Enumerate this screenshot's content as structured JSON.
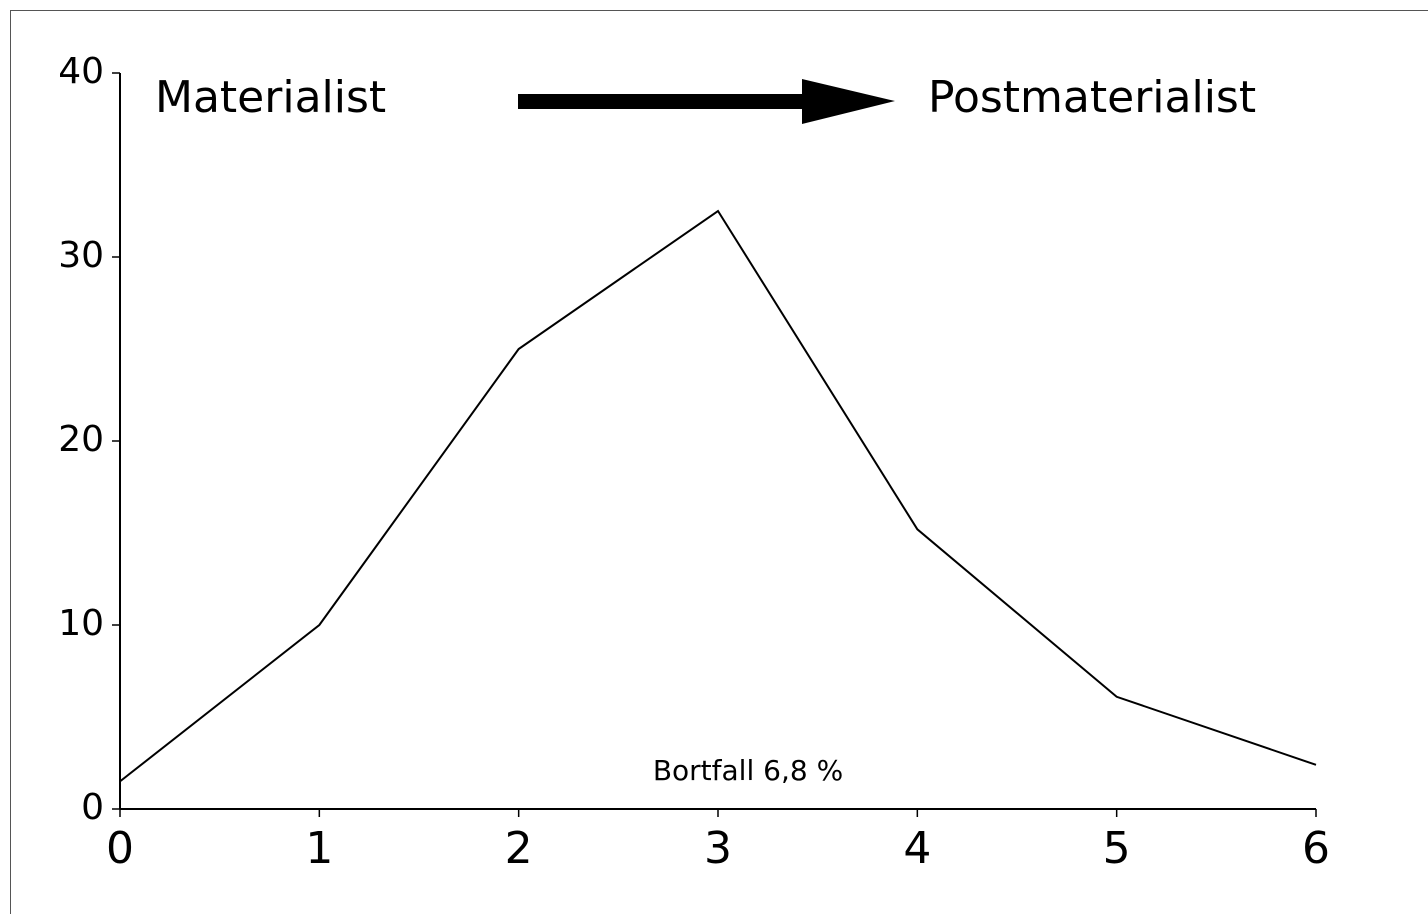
{
  "chart_data": {
    "type": "line",
    "annotations": [
      "Materialist",
      "Postmaterialist",
      "Bortfall 6,8 %"
    ],
    "x": [
      0,
      1,
      2,
      3,
      4,
      5,
      6
    ],
    "series": [
      {
        "color": "#000000",
        "values": [
          1.5,
          10,
          25,
          32.5,
          15.2,
          6.1,
          2.4
        ]
      }
    ],
    "xlim": [
      0,
      6
    ],
    "xticks": [
      0,
      1,
      2,
      3,
      4,
      5,
      6
    ],
    "ylim": [
      0,
      40
    ],
    "yticks": [
      0,
      10,
      20,
      30,
      40
    ]
  }
}
